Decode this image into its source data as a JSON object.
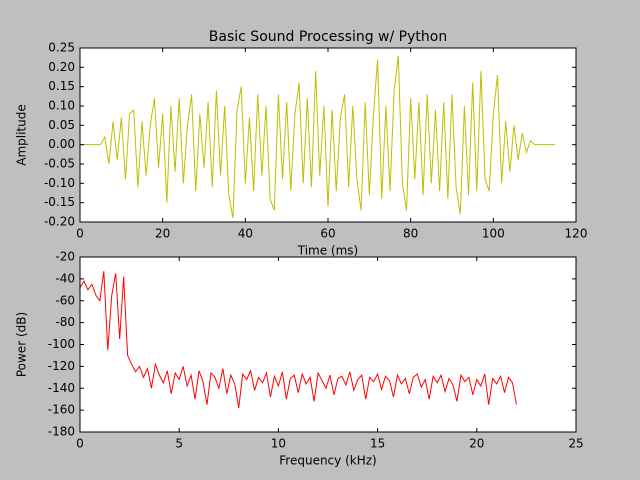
{
  "chart_data": [
    {
      "type": "line",
      "title": "Basic Sound Processing w/ Python",
      "xlabel": "Time (ms)",
      "ylabel": "Amplitude",
      "color": "#bfbf00",
      "xlim": [
        0,
        120
      ],
      "xticks": [
        0,
        20,
        40,
        60,
        80,
        100,
        120
      ],
      "ylim": [
        -0.2,
        0.25
      ],
      "yticks": [
        {
          "value": -0.2,
          "label": "-0.20"
        },
        -0.15,
        {
          "value": -0.1,
          "label": "-0.10"
        },
        -0.05,
        {
          "value": 0,
          "label": "0.00"
        },
        0.05,
        {
          "value": 0.1,
          "label": "0.10"
        },
        0.15,
        {
          "value": 0.2,
          "label": "0.20"
        },
        0.25
      ],
      "x": [
        0,
        1,
        2,
        3,
        4,
        5,
        6,
        7,
        8,
        9,
        10,
        11,
        12,
        13,
        14,
        15,
        16,
        17,
        18,
        19,
        20,
        21,
        22,
        23,
        24,
        25,
        26,
        27,
        28,
        29,
        30,
        31,
        32,
        33,
        34,
        35,
        36,
        37,
        38,
        39,
        40,
        41,
        42,
        43,
        44,
        45,
        46,
        47,
        48,
        49,
        50,
        51,
        52,
        53,
        54,
        55,
        56,
        57,
        58,
        59,
        60,
        61,
        62,
        63,
        64,
        65,
        66,
        67,
        68,
        69,
        70,
        71,
        72,
        73,
        74,
        75,
        76,
        77,
        78,
        79,
        80,
        81,
        82,
        83,
        84,
        85,
        86,
        87,
        88,
        89,
        90,
        91,
        92,
        93,
        94,
        95,
        96,
        97,
        98,
        99,
        100,
        101,
        102,
        103,
        104,
        105,
        106,
        107,
        108,
        109,
        110,
        111,
        112,
        113,
        114,
        115
      ],
      "values": [
        0,
        0,
        0,
        0,
        0,
        0,
        0.02,
        -0.05,
        0.06,
        -0.04,
        0.07,
        -0.09,
        0.08,
        0.09,
        -0.11,
        0.06,
        -0.08,
        0.05,
        0.12,
        -0.06,
        0.08,
        -0.15,
        0.1,
        -0.07,
        0.12,
        -0.1,
        0.05,
        0.13,
        -0.12,
        0.08,
        -0.06,
        0.11,
        -0.11,
        0.14,
        -0.08,
        0.1,
        -0.13,
        -0.19,
        0.09,
        0.15,
        -0.1,
        0.07,
        -0.12,
        0.13,
        -0.08,
        0.1,
        -0.14,
        -0.17,
        0.13,
        -0.09,
        0.11,
        -0.12,
        0.08,
        0.16,
        -0.1,
        0.12,
        -0.11,
        0.19,
        -0.08,
        0.1,
        -0.16,
        0.09,
        -0.12,
        0.07,
        0.13,
        -0.11,
        0.1,
        -0.09,
        -0.17,
        0.11,
        -0.13,
        0.08,
        0.22,
        -0.14,
        0.1,
        -0.12,
        0.14,
        0.23,
        -0.1,
        -0.17,
        0.12,
        -0.09,
        0.11,
        -0.13,
        0.13,
        -0.1,
        0.09,
        -0.12,
        0.11,
        -0.14,
        0.13,
        -0.11,
        -0.18,
        0.1,
        -0.13,
        0.16,
        -0.12,
        0.19,
        -0.09,
        -0.12,
        0.08,
        0.18,
        -0.1,
        0.06,
        -0.07,
        0.05,
        -0.04,
        0.03,
        -0.02,
        0.01,
        0,
        0,
        0,
        0,
        0,
        0
      ]
    },
    {
      "type": "line",
      "xlabel": "Frequency (kHz)",
      "ylabel": "Power (dB)",
      "color": "#ff0000",
      "xlim": [
        0,
        25
      ],
      "xticks": [
        0,
        5,
        10,
        15,
        20,
        25
      ],
      "ylim": [
        -180,
        -20
      ],
      "yticks": [
        -180,
        -160,
        -140,
        -120,
        -100,
        -80,
        -60,
        -40,
        -20
      ],
      "x": [
        0,
        0.2,
        0.4,
        0.6,
        0.8,
        1,
        1.2,
        1.4,
        1.6,
        1.8,
        2,
        2.2,
        2.4,
        2.6,
        2.8,
        3,
        3.2,
        3.4,
        3.6,
        3.8,
        4,
        4.2,
        4.4,
        4.6,
        4.8,
        5,
        5.2,
        5.4,
        5.6,
        5.8,
        6,
        6.2,
        6.4,
        6.6,
        6.8,
        7,
        7.2,
        7.4,
        7.6,
        7.8,
        8,
        8.2,
        8.4,
        8.6,
        8.8,
        9,
        9.2,
        9.4,
        9.6,
        9.8,
        10,
        10.2,
        10.4,
        10.6,
        10.8,
        11,
        11.2,
        11.4,
        11.6,
        11.8,
        12,
        12.2,
        12.4,
        12.6,
        12.8,
        13,
        13.2,
        13.4,
        13.6,
        13.8,
        14,
        14.2,
        14.4,
        14.6,
        14.8,
        15,
        15.2,
        15.4,
        15.6,
        15.8,
        16,
        16.2,
        16.4,
        16.6,
        16.8,
        17,
        17.2,
        17.4,
        17.6,
        17.8,
        18,
        18.2,
        18.4,
        18.6,
        18.8,
        19,
        19.2,
        19.4,
        19.6,
        19.8,
        20,
        20.2,
        20.4,
        20.6,
        20.8,
        21,
        21.2,
        21.4,
        21.6,
        21.8,
        22
      ],
      "values": [
        -48,
        -42,
        -50,
        -45,
        -55,
        -60,
        -33,
        -105,
        -55,
        -35,
        -95,
        -38,
        -110,
        -118,
        -125,
        -120,
        -130,
        -122,
        -140,
        -118,
        -128,
        -135,
        -124,
        -145,
        -126,
        -132,
        -120,
        -138,
        -128,
        -150,
        -124,
        -134,
        -155,
        -126,
        -130,
        -140,
        -122,
        -145,
        -128,
        -136,
        -158,
        -127,
        -132,
        -124,
        -142,
        -130,
        -135,
        -126,
        -148,
        -129,
        -138,
        -125,
        -150,
        -131,
        -128,
        -144,
        -127,
        -136,
        -130,
        -152,
        -126,
        -133,
        -140,
        -128,
        -146,
        -131,
        -129,
        -137,
        -125,
        -142,
        -132,
        -128,
        -150,
        -130,
        -134,
        -127,
        -141,
        -129,
        -133,
        -148,
        -128,
        -136,
        -131,
        -145,
        -130,
        -127,
        -139,
        -132,
        -150,
        -129,
        -135,
        -128,
        -143,
        -131,
        -137,
        -152,
        -128,
        -134,
        -130,
        -146,
        -132,
        -138,
        -127,
        -155,
        -131,
        -136,
        -129,
        -144,
        -130,
        -135,
        -155
      ]
    }
  ]
}
